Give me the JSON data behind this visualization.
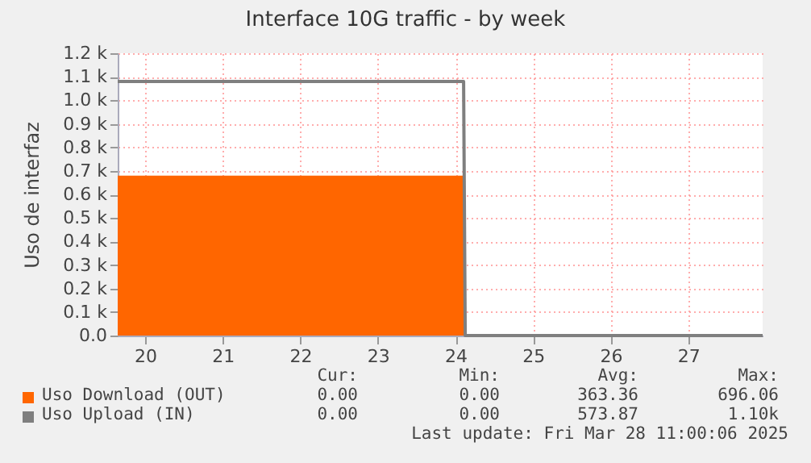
{
  "chart_data": {
    "type": "area",
    "title": "Interface 10G traffic - by week",
    "ylabel": "Uso de interfaz",
    "xlim": [
      "2025-03-20T03:30",
      "2025-03-28T11:00"
    ],
    "xticks": [
      {
        "value": "2025-03-20T12:00",
        "label": "20"
      },
      {
        "value": "2025-03-21T12:00",
        "label": "21"
      },
      {
        "value": "2025-03-22T12:00",
        "label": "22"
      },
      {
        "value": "2025-03-23T12:00",
        "label": "23"
      },
      {
        "value": "2025-03-24T12:00",
        "label": "24"
      },
      {
        "value": "2025-03-25T12:00",
        "label": "25"
      },
      {
        "value": "2025-03-26T12:00",
        "label": "26"
      },
      {
        "value": "2025-03-27T12:00",
        "label": "27"
      }
    ],
    "ylim": [
      0,
      1200
    ],
    "yticks": [
      {
        "value": 0,
        "label": "0.0"
      },
      {
        "value": 100,
        "label": "0.1 k"
      },
      {
        "value": 200,
        "label": "0.2 k"
      },
      {
        "value": 300,
        "label": "0.3 k"
      },
      {
        "value": 400,
        "label": "0.4 k"
      },
      {
        "value": 500,
        "label": "0.5 k"
      },
      {
        "value": 600,
        "label": "0.6 k"
      },
      {
        "value": 700,
        "label": "0.7 k"
      },
      {
        "value": 800,
        "label": "0.8 k"
      },
      {
        "value": 900,
        "label": "0.9 k"
      },
      {
        "value": 1000,
        "label": "1.0 k"
      },
      {
        "value": 1100,
        "label": "1.1 k"
      },
      {
        "value": 1200,
        "label": "1.2 k"
      }
    ],
    "grid": true,
    "legend": "bottom",
    "series": [
      {
        "name": "Uso Download (OUT)",
        "color": "#ff6600",
        "x": [
          "2025-03-20T03:30",
          "2025-03-24T14:30",
          "2025-03-24T15:00",
          "2025-03-28T11:00"
        ],
        "values": [
          680,
          680,
          0,
          0
        ]
      },
      {
        "name": "Uso Upload (IN)",
        "type": "line",
        "color": "#7f7f7f",
        "x": [
          "2025-03-20T03:30",
          "2025-03-24T14:30",
          "2025-03-24T15:00",
          "2025-03-28T11:00"
        ],
        "values": [
          1080,
          1080,
          0,
          0
        ]
      }
    ],
    "annotations": [
      "Cur:",
      "Min:",
      "Avg:",
      "Max:",
      "0.00",
      "0.00",
      "363.36",
      "696.06",
      "0.00",
      "0.00",
      "573.87",
      "1.10k",
      "Last update: Fri Mar 28 11:00:06 2025"
    ]
  }
}
